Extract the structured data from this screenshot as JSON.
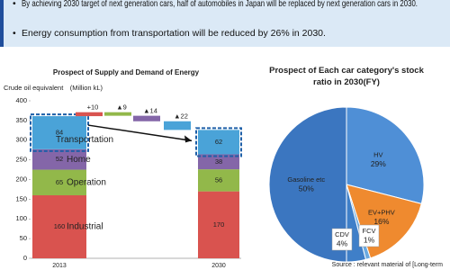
{
  "header": {
    "bullets": [
      "By achieving 2030 target of next generation cars, half of automobiles in Japan will be replaced by next generation cars in 2030.",
      "Energy consumption from transportation will be reduced by 26% in 2030."
    ]
  },
  "chart_data": [
    {
      "type": "bar",
      "stacked": true,
      "title": "Prospect of Supply and Demand of Energy",
      "y_label": "Crude oil equivalent　(Million kL)",
      "categories": [
        "2013",
        "2030"
      ],
      "series": [
        {
          "name": "Industrial",
          "color": "#d9534f",
          "values": [
            160,
            170
          ]
        },
        {
          "name": "Operation",
          "color": "#92b84a",
          "values": [
            65,
            56
          ]
        },
        {
          "name": "Home",
          "color": "#8466a8",
          "values": [
            52,
            38
          ]
        },
        {
          "name": "Transportation",
          "color": "#4aa3d8",
          "values": [
            84,
            62
          ]
        }
      ],
      "changes": {
        "values": [
          10,
          -9,
          -14,
          -22
        ],
        "value_labels": [
          "+10",
          "▲9",
          "▲14",
          "▲22"
        ],
        "colors": [
          "#d9534f",
          "#92b84a",
          "#8466a8",
          "#4aa3d8"
        ]
      },
      "ylim": [
        0,
        400
      ],
      "yticks": [
        0,
        50,
        100,
        150,
        200,
        250,
        300,
        350,
        400
      ],
      "grid": false
    },
    {
      "type": "pie",
      "title": "Prospect of Each car category's stock ratio in 2030(FY)",
      "categories": [
        "HV",
        "EV+PHV",
        "FCV",
        "CDV",
        "Gasoline etc"
      ],
      "values": [
        29,
        16,
        1,
        4,
        50
      ],
      "value_labels": [
        "29%",
        "16%",
        "1%",
        "4%",
        "50%"
      ],
      "colors": [
        "#4f8fd6",
        "#ef8a2f",
        "#6aa9e0",
        "#3f7fc8",
        "#3b76c0"
      ],
      "source": "Source : relevant material of [Long-term"
    }
  ]
}
